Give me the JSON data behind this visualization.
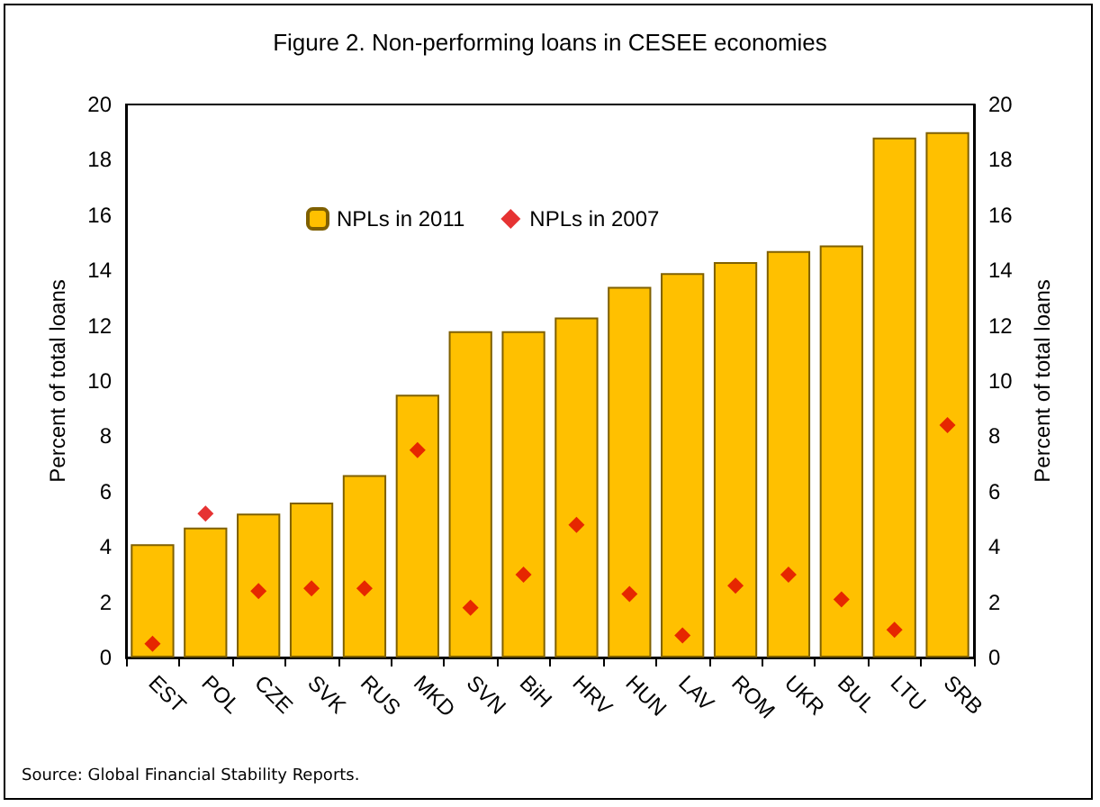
{
  "chart_data": {
    "type": "bar",
    "title": "Figure 2. Non-performing loans in CESEE economies",
    "categories": [
      "EST",
      "POL",
      "CZE",
      "SVK",
      "RUS",
      "MKD",
      "SVN",
      "BiH",
      "HRV",
      "HUN",
      "LAV",
      "ROM",
      "UKR",
      "BUL",
      "LTU",
      "SRB"
    ],
    "series": [
      {
        "name": "NPLs in 2011",
        "color": "#ffc000",
        "values": [
          4.1,
          4.7,
          5.2,
          5.6,
          6.6,
          9.5,
          11.8,
          11.8,
          12.3,
          13.4,
          13.9,
          14.3,
          14.7,
          14.9,
          18.8,
          19.0
        ]
      },
      {
        "name": "NPLs in 2007",
        "type": "scatter",
        "marker": "diamond",
        "color": "#e00000",
        "values": [
          0.5,
          5.2,
          2.4,
          2.5,
          2.5,
          7.5,
          1.8,
          3.0,
          4.8,
          2.3,
          0.8,
          2.6,
          3.0,
          2.1,
          1.0,
          8.4
        ]
      }
    ],
    "ylabel": "Percent of total loans",
    "y2label": "Percent of total loans",
    "ylim": [
      0,
      20
    ],
    "yticks": [
      0,
      2,
      4,
      6,
      8,
      10,
      12,
      14,
      16,
      18,
      20
    ],
    "y2lim": [
      0,
      20
    ],
    "y2ticks": [
      0,
      2,
      4,
      6,
      8,
      10,
      12,
      14,
      16,
      18,
      20
    ],
    "grid": false,
    "legend": "top left",
    "annotations": [
      "Source: Global Financial Stability Reports."
    ]
  }
}
